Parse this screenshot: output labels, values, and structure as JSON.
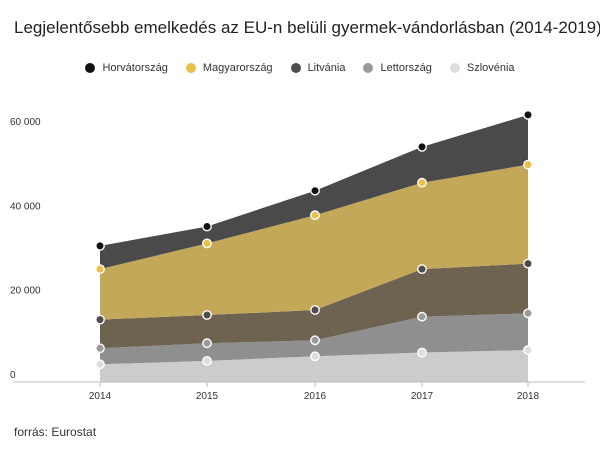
{
  "chart_data": {
    "type": "area",
    "stacked": true,
    "title": "Legjelentősebb emelkedés az EU-n belüli gyermek-vándorlásban (2014-2019)",
    "categories": [
      "2014",
      "2015",
      "2016",
      "2017",
      "2018"
    ],
    "series": [
      {
        "name": "Horvátország",
        "color": "#111111",
        "fill": "#4a4a4a",
        "values": [
          5500,
          4000,
          5800,
          8500,
          11800
        ]
      },
      {
        "name": "Magyarország",
        "color": "#e8c04a",
        "fill": "#c4a85a",
        "values": [
          12000,
          17000,
          22500,
          20500,
          23500
        ]
      },
      {
        "name": "Litvánia",
        "color": "#4d4d4d",
        "fill": "#6e6250",
        "values": [
          6800,
          6700,
          7200,
          11300,
          11800
        ]
      },
      {
        "name": "Lettország",
        "color": "#9a9a9a",
        "fill": "#8f8f8f",
        "values": [
          3800,
          4200,
          3800,
          8500,
          8700
        ]
      },
      {
        "name": "Szlovénia",
        "color": "#dddddd",
        "fill": "#cccccc",
        "values": [
          4200,
          5000,
          6100,
          7000,
          7600
        ]
      }
    ],
    "yticks": [
      "0",
      "20 000",
      "40 000",
      "60 000"
    ],
    "ylim": [
      0,
      70000
    ],
    "legend_position": "top",
    "grid": false
  },
  "source": "forrás: Eurostat"
}
